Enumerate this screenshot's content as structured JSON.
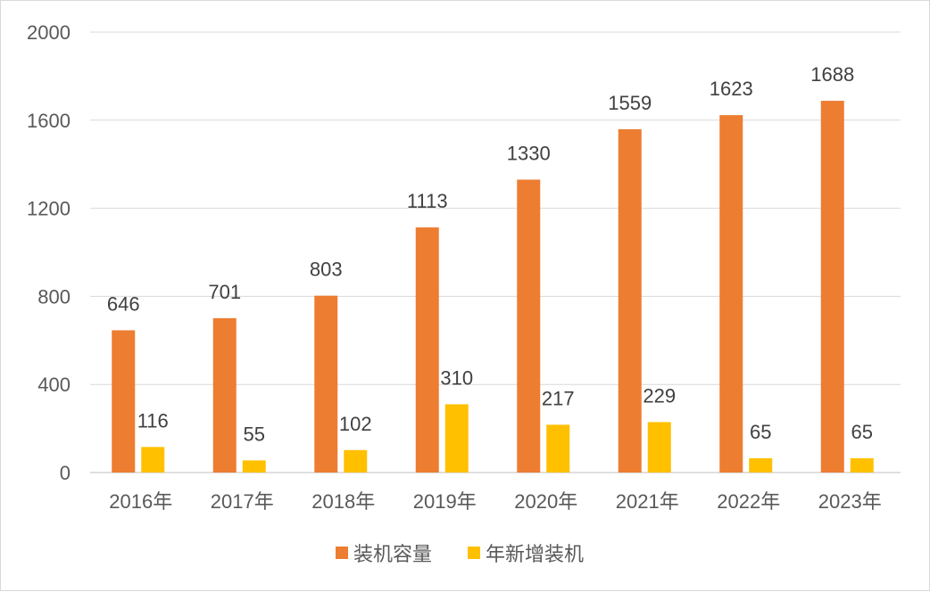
{
  "chart_data": {
    "type": "bar",
    "categories": [
      "2016年",
      "2017年",
      "2018年",
      "2019年",
      "2020年",
      "2021年",
      "2022年",
      "2023年"
    ],
    "series": [
      {
        "name": "装机容量",
        "values": [
          646,
          701,
          803,
          1113,
          1330,
          1559,
          1623,
          1688
        ],
        "color": "#ED7D31"
      },
      {
        "name": "年新增装机",
        "values": [
          116,
          55,
          102,
          310,
          217,
          229,
          65,
          65
        ],
        "color": "#FFC000"
      }
    ],
    "ylim": [
      0,
      2000
    ],
    "yticks": [
      0,
      400,
      800,
      1200,
      1600,
      2000
    ],
    "grid": true,
    "legend": "bottom",
    "data_labels": true
  }
}
